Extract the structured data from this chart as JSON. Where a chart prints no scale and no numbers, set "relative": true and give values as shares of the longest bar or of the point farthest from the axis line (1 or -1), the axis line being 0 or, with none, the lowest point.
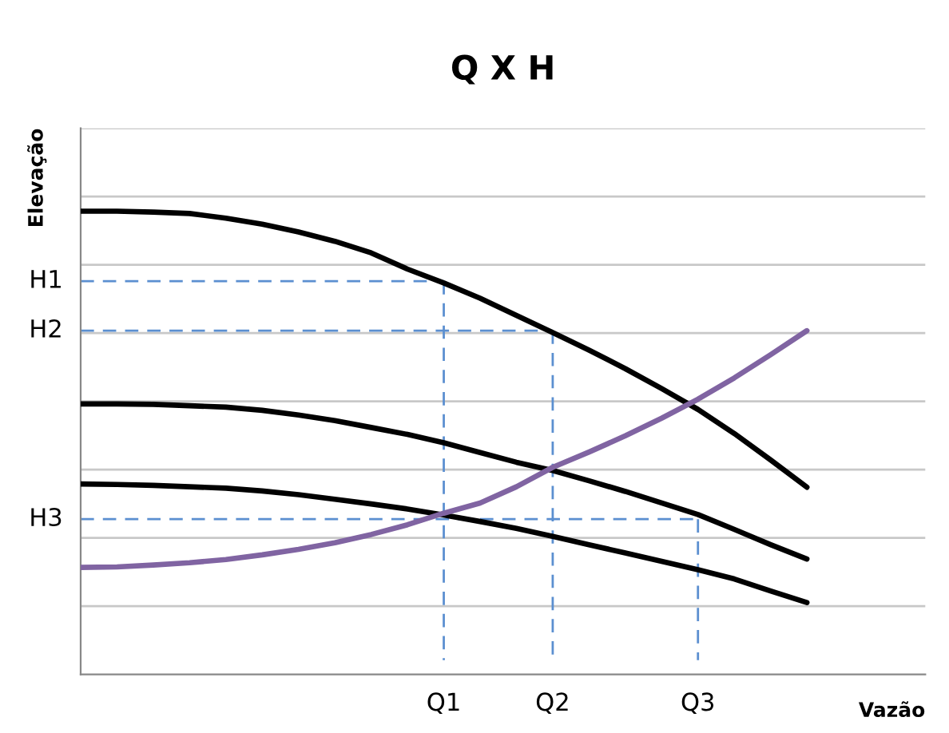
{
  "chart_data": {
    "type": "line",
    "title": "Q X H",
    "xlabel": "Vazão",
    "ylabel": "Elevação",
    "relative": true,
    "categories": [
      null,
      null,
      null,
      null,
      null,
      null,
      null,
      null,
      null,
      null,
      "Q1",
      null,
      null,
      "Q2",
      null,
      null,
      null,
      "Q3",
      null,
      null,
      null
    ],
    "ref_lines": [
      {
        "axis": "y",
        "value": 0.849,
        "label": "H1",
        "color": "#5b8fd0",
        "line_style": "dashed"
      },
      {
        "axis": "y",
        "value": 0.742,
        "label": "H2",
        "color": "#5b8fd0",
        "line_style": "dashed"
      },
      {
        "axis": "y",
        "value": 0.335,
        "label": "H3",
        "color": "#5b8fd0",
        "line_style": "dashed"
      },
      {
        "axis": "x",
        "value": "Q1",
        "color": "#5b8fd0",
        "line_style": "dashed"
      },
      {
        "axis": "x",
        "value": "Q2",
        "color": "#5b8fd0",
        "line_style": "dashed"
      },
      {
        "axis": "x",
        "value": "Q3",
        "color": "#5b8fd0",
        "line_style": "dashed"
      }
    ],
    "grid": "y",
    "legend": false,
    "marker": "none",
    "line_style": "solid",
    "series": [
      {
        "color": "#000000",
        "values": [
          1.0,
          1.0,
          0.998,
          0.995,
          0.985,
          0.972,
          0.955,
          0.935,
          0.91,
          0.875,
          0.845,
          0.812,
          0.775,
          0.738,
          0.7,
          0.66,
          0.617,
          0.572,
          0.52,
          0.463,
          0.404
        ]
      },
      {
        "color": "#000000",
        "values": [
          0.584,
          0.584,
          0.583,
          0.58,
          0.577,
          0.57,
          0.56,
          0.548,
          0.533,
          0.518,
          0.5,
          0.479,
          0.458,
          0.44,
          0.418,
          0.395,
          0.37,
          0.345,
          0.313,
          0.28,
          0.249
        ]
      },
      {
        "color": "#000000",
        "values": [
          0.411,
          0.41,
          0.408,
          0.405,
          0.402,
          0.396,
          0.388,
          0.378,
          0.368,
          0.357,
          0.344,
          0.33,
          0.315,
          0.298,
          0.28,
          0.262,
          0.244,
          0.226,
          0.206,
          0.18,
          0.155
        ]
      },
      {
        "color": "#8064a2",
        "values": [
          0.231,
          0.232,
          0.236,
          0.241,
          0.248,
          0.258,
          0.27,
          0.284,
          0.302,
          0.323,
          0.348,
          0.37,
          0.405,
          0.447,
          0.48,
          0.515,
          0.553,
          0.594,
          0.64,
          0.69,
          0.742
        ]
      }
    ]
  }
}
